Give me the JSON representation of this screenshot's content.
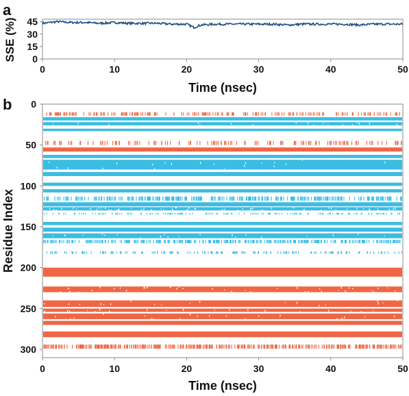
{
  "colors": {
    "helix": "#f06645",
    "strand": "#3bbde3",
    "sse_line": "#1f4e82",
    "axis": "#8a8a8a"
  },
  "chart_data": [
    {
      "panel": "a",
      "type": "line",
      "xlabel": "Time (nsec)",
      "ylabel": "SSE (%)",
      "xlim": [
        0,
        50
      ],
      "ylim": [
        0,
        48
      ],
      "xticks": [
        "0",
        "10",
        "20",
        "30",
        "40",
        "50"
      ],
      "yticks": [
        "0",
        "15",
        "30",
        "45"
      ],
      "series": [
        {
          "x": [
            0,
            2,
            4,
            6,
            8,
            10,
            12,
            14,
            16,
            18,
            20,
            21,
            22,
            24,
            26,
            28,
            30,
            32,
            34,
            36,
            38,
            40,
            42,
            44,
            46,
            48,
            50
          ],
          "y": [
            43,
            45,
            44,
            44,
            43,
            44,
            43,
            43,
            43,
            42,
            42,
            38,
            41,
            42,
            42,
            42,
            42,
            42,
            41,
            42,
            42,
            42,
            42,
            41,
            42,
            42,
            42
          ]
        }
      ]
    },
    {
      "panel": "b",
      "type": "heatmap",
      "xlabel": "Time (nsec)",
      "ylabel": "Residue Index",
      "xlim": [
        0,
        50
      ],
      "ylim": [
        0,
        310
      ],
      "xticks": [
        "0",
        "10",
        "20",
        "30",
        "40",
        "50"
      ],
      "yticks": [
        "0",
        "50",
        "100",
        "150",
        "200",
        "250",
        "300"
      ],
      "bands": [
        {
          "type": "helix",
          "y0": 10,
          "y1": 14,
          "density": 0.4
        },
        {
          "type": "strand",
          "y0": 16,
          "y1": 20,
          "density": 1.0
        },
        {
          "type": "strand",
          "y0": 22,
          "y1": 26,
          "density": 0.95
        },
        {
          "type": "strand",
          "y0": 30,
          "y1": 33,
          "density": 1.0
        },
        {
          "type": "helix",
          "y0": 45,
          "y1": 50,
          "density": 0.25
        },
        {
          "type": "helix",
          "y0": 53,
          "y1": 58,
          "density": 1.0
        },
        {
          "type": "strand",
          "y0": 62,
          "y1": 66,
          "density": 1.0
        },
        {
          "type": "strand",
          "y0": 68,
          "y1": 80,
          "density": 0.95
        },
        {
          "type": "strand",
          "y0": 83,
          "y1": 88,
          "density": 1.0
        },
        {
          "type": "strand",
          "y0": 96,
          "y1": 100,
          "density": 1.0
        },
        {
          "type": "strand",
          "y0": 104,
          "y1": 108,
          "density": 1.0
        },
        {
          "type": "strand",
          "y0": 113,
          "y1": 118,
          "density": 0.6
        },
        {
          "type": "strand",
          "y0": 120,
          "y1": 125,
          "density": 1.0
        },
        {
          "type": "strand",
          "y0": 126,
          "y1": 130,
          "density": 0.85
        },
        {
          "type": "strand",
          "y0": 133,
          "y1": 135,
          "density": 0.3
        },
        {
          "type": "strand",
          "y0": 144,
          "y1": 148,
          "density": 1.0
        },
        {
          "type": "strand",
          "y0": 151,
          "y1": 156,
          "density": 1.0
        },
        {
          "type": "strand",
          "y0": 158,
          "y1": 164,
          "density": 0.95
        },
        {
          "type": "strand",
          "y0": 166,
          "y1": 170,
          "density": 0.6
        },
        {
          "type": "strand",
          "y0": 180,
          "y1": 183,
          "density": 0.3
        },
        {
          "type": "helix",
          "y0": 200,
          "y1": 211,
          "density": 1.0
        },
        {
          "type": "helix",
          "y0": 223,
          "y1": 230,
          "density": 0.9
        },
        {
          "type": "helix",
          "y0": 240,
          "y1": 248,
          "density": 0.95
        },
        {
          "type": "helix",
          "y0": 250,
          "y1": 254,
          "density": 0.95
        },
        {
          "type": "helix",
          "y0": 256,
          "y1": 263,
          "density": 0.95
        },
        {
          "type": "helix",
          "y0": 265,
          "y1": 270,
          "density": 1.0
        },
        {
          "type": "helix",
          "y0": 278,
          "y1": 285,
          "density": 1.0
        },
        {
          "type": "helix",
          "y0": 294,
          "y1": 299,
          "density": 0.7
        }
      ]
    }
  ],
  "labels": {
    "panel_a": "a",
    "panel_b": "b"
  }
}
